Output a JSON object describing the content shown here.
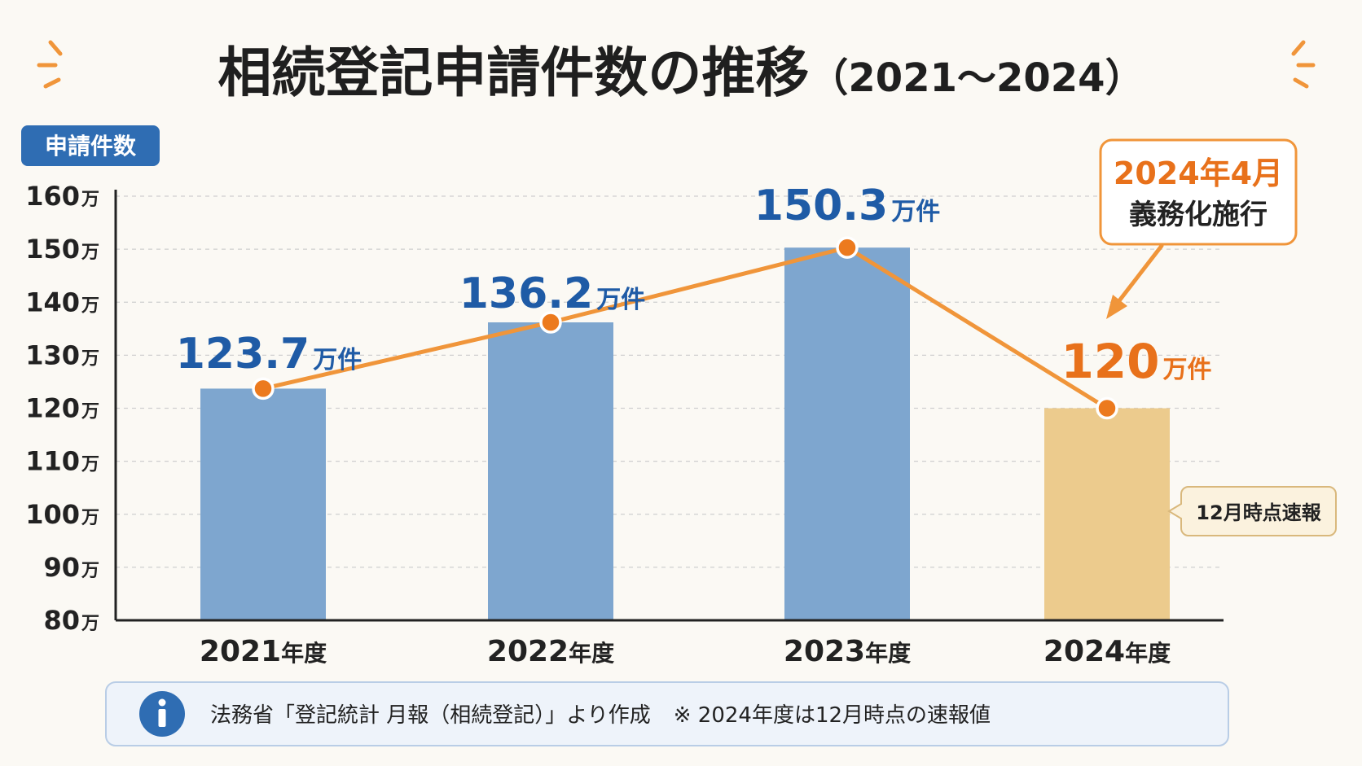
{
  "chart_data": {
    "type": "bar",
    "title": "相続登記申請件数の推移",
    "subtitle": "（2021〜2024）",
    "ylabel": "申請件数",
    "ylim": [
      80,
      160
    ],
    "yticks": [
      80,
      90,
      100,
      110,
      120,
      130,
      140,
      150,
      160
    ],
    "ytick_suffix": "万",
    "grid": true,
    "categories": [
      "2021",
      "2022",
      "2023",
      "2024"
    ],
    "category_suffix": "年度",
    "values": [
      123.7,
      136.2,
      150.3,
      120
    ],
    "value_labels": [
      "123.7",
      "136.2",
      "150.3",
      "120"
    ],
    "value_unit": "万件",
    "line_overlay": true,
    "colors": {
      "bar": "#7ea6cf",
      "bar_highlight": "#eccb8d",
      "line": "#f0953a",
      "marker": "#ec7a1e",
      "value_label": "#1f5ba6",
      "value_label_highlight": "#e8711b",
      "accent_orange": "#e8711b",
      "ylabel_bg": "#2f6db3"
    },
    "annotations": [
      {
        "text_line1": "2024年4月",
        "text_line2": "義務化施行",
        "target_category": "2024"
      },
      {
        "text": "12月時点速報",
        "target_category": "2024"
      }
    ]
  },
  "footer": {
    "icon": "info-icon",
    "source_text": "法務省「登記統計 月報（相続登記）」より作成",
    "note_text": "※ 2024年度は12月時点の速報値"
  }
}
